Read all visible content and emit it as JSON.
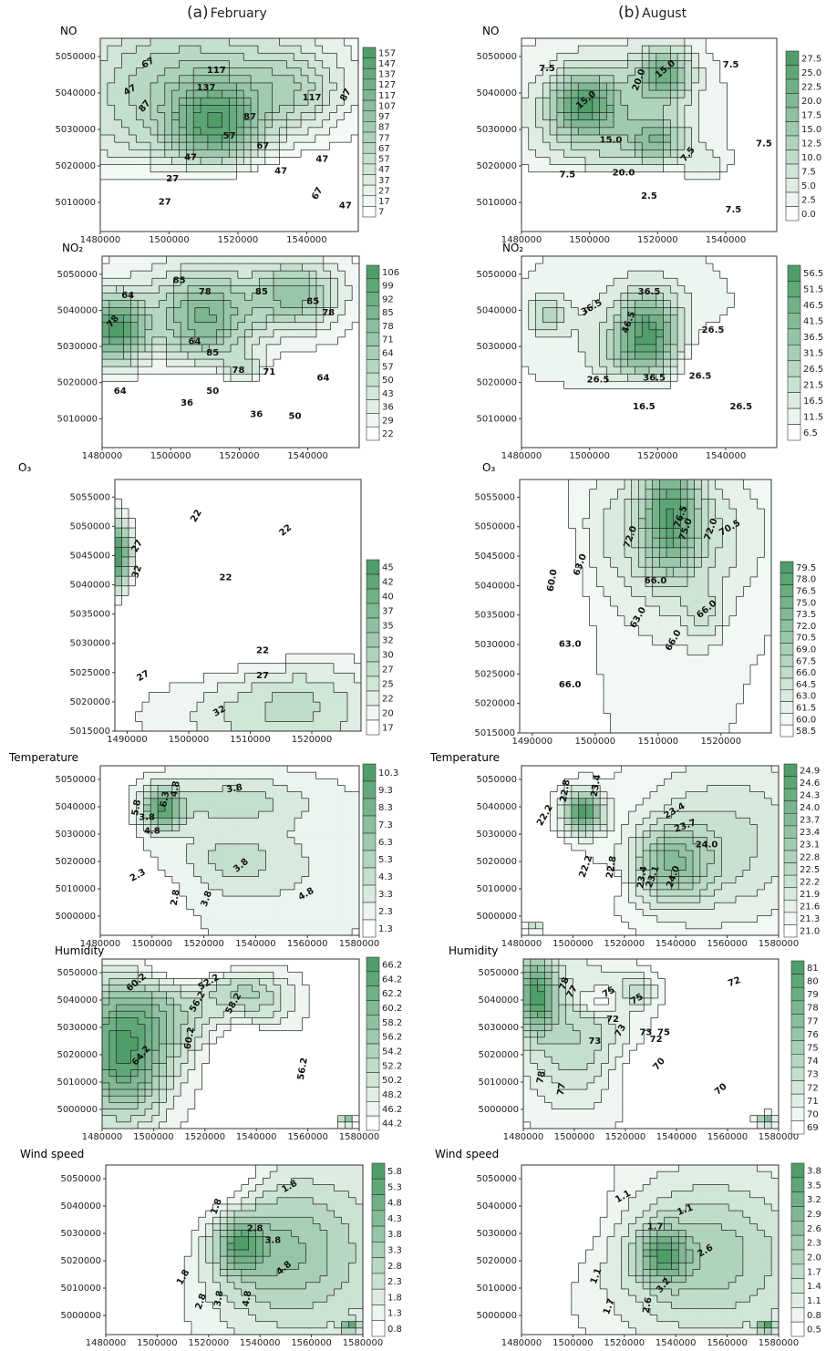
{
  "columns": [
    {
      "letter": "(a)",
      "name": "February"
    },
    {
      "letter": "(b)",
      "name": "August"
    }
  ],
  "colors": {
    "low": "#ffffff",
    "high": "#4f9e6a",
    "line": "#1e1e1e"
  },
  "chart_data": [
    {
      "id": "no-feb",
      "type": "contour",
      "column": "February",
      "title": "NO",
      "xlim": [
        1480000,
        1555000
      ],
      "ylim": [
        5002000,
        5055000
      ],
      "xticks": [
        "1480000",
        "1500000",
        "1520000",
        "1540000"
      ],
      "yticks": [
        "5010000",
        "5020000",
        "5030000",
        "5040000",
        "5050000"
      ],
      "colorbar_levels": [
        "157",
        "147",
        "137",
        "127",
        "117",
        "107",
        "97",
        "87",
        "77",
        "67",
        "57",
        "47",
        "37",
        "27",
        "17",
        "7"
      ],
      "contour_labels": [
        "47",
        "67",
        "87",
        "117",
        "137",
        "57",
        "117",
        "87",
        "67",
        "47",
        "47",
        "27",
        "47",
        "27",
        "47",
        "67",
        "87"
      ]
    },
    {
      "id": "no-aug",
      "type": "contour",
      "column": "August",
      "title": "NO",
      "xlim": [
        1480000,
        1555000
      ],
      "ylim": [
        5002000,
        5055000
      ],
      "xticks": [
        "1480000",
        "1500000",
        "1520000",
        "1540000"
      ],
      "yticks": [
        "5010000",
        "5020000",
        "5030000",
        "5040000",
        "5050000"
      ],
      "colorbar_levels": [
        "27.5",
        "25.0",
        "22.5",
        "20.0",
        "17.5",
        "15.0",
        "12.5",
        "10.0",
        "7.5",
        "5.0",
        "2.5",
        "0.0"
      ],
      "contour_labels": [
        "7.5",
        "15.0",
        "20.0",
        "15.0",
        "7.5",
        "20.0",
        "15.0",
        "7.5",
        "7.5",
        "7.5",
        "2.5",
        "7.5"
      ]
    },
    {
      "id": "no2-feb",
      "type": "contour",
      "column": "February",
      "title": "NO₂",
      "xlim": [
        1480000,
        1555000
      ],
      "ylim": [
        5002000,
        5055000
      ],
      "xticks": [
        "1480000",
        "1500000",
        "1520000",
        "1540000"
      ],
      "yticks": [
        "5010000",
        "5020000",
        "5030000",
        "5040000",
        "5050000"
      ],
      "colorbar_levels": [
        "106",
        "99",
        "92",
        "85",
        "78",
        "71",
        "64",
        "57",
        "50",
        "43",
        "36",
        "29",
        "22"
      ],
      "contour_labels": [
        "64",
        "85",
        "78",
        "85",
        "85",
        "78",
        "78",
        "64",
        "85",
        "78",
        "71",
        "64",
        "50",
        "64",
        "36",
        "36",
        "50"
      ]
    },
    {
      "id": "no2-aug",
      "type": "contour",
      "column": "August",
      "title": "NO₂",
      "xlim": [
        1480000,
        1555000
      ],
      "ylim": [
        5002000,
        5055000
      ],
      "xticks": [
        "1480000",
        "1500000",
        "1520000",
        "1540000"
      ],
      "yticks": [
        "5010000",
        "5020000",
        "5030000",
        "5040000",
        "5050000"
      ],
      "colorbar_levels": [
        "56.5",
        "51.5",
        "46.5",
        "41.5",
        "36.5",
        "31.5",
        "26.5",
        "21.5",
        "16.5",
        "11.5",
        "6.5"
      ],
      "contour_labels": [
        "36.5",
        "36.5",
        "46.5",
        "26.5",
        "36.5",
        "26.5",
        "26.5",
        "16.5",
        "26.5"
      ]
    },
    {
      "id": "o3-feb",
      "type": "contour",
      "column": "February",
      "title": "O₃",
      "xlim": [
        1488000,
        1528000
      ],
      "ylim": [
        5015000,
        5058000
      ],
      "xticks": [
        "1490000",
        "1500000",
        "1510000",
        "1520000"
      ],
      "yticks": [
        "5015000",
        "5020000",
        "5025000",
        "5030000",
        "5035000",
        "5040000",
        "5045000",
        "5050000",
        "5055000"
      ],
      "colorbar_levels": [
        "45",
        "42",
        "40",
        "37",
        "35",
        "32",
        "30",
        "27",
        "25",
        "22",
        "20",
        "17"
      ],
      "contour_labels": [
        "22",
        "22",
        "27",
        "32",
        "22",
        "22",
        "27",
        "27",
        "32"
      ]
    },
    {
      "id": "o3-aug",
      "type": "contour",
      "column": "August",
      "title": "O₃",
      "xlim": [
        1488000,
        1528000
      ],
      "ylim": [
        5015000,
        5058000
      ],
      "xticks": [
        "1490000",
        "1500000",
        "1510000",
        "1520000"
      ],
      "yticks": [
        "5015000",
        "5020000",
        "5025000",
        "5030000",
        "5035000",
        "5040000",
        "5045000",
        "5050000",
        "5055000"
      ],
      "colorbar_levels": [
        "79.5",
        "78.0",
        "76.5",
        "75.0",
        "73.5",
        "72.0",
        "70.5",
        "69.0",
        "67.5",
        "66.0",
        "64.5",
        "63.0",
        "61.5",
        "60.0",
        "58.5"
      ],
      "contour_labels": [
        "63.0",
        "72.0",
        "76.5",
        "75.0",
        "72.0",
        "70.5",
        "60.0",
        "66.0",
        "63.0",
        "66.0",
        "63.0",
        "66.0",
        "66.0"
      ]
    },
    {
      "id": "temp-feb",
      "type": "contour",
      "column": "February",
      "title": "Temperature",
      "xlim": [
        1480000,
        1580000
      ],
      "ylim": [
        4993000,
        5055000
      ],
      "xticks": [
        "1480000",
        "1500000",
        "1520000",
        "1540000",
        "1560000",
        "1580000"
      ],
      "yticks": [
        "5000000",
        "5010000",
        "5020000",
        "5030000",
        "5040000",
        "5050000"
      ],
      "colorbar_levels": [
        "10.3",
        "9.3",
        "8.3",
        "7.3",
        "6.3",
        "5.3",
        "4.3",
        "3.3",
        "2.3",
        "1.3"
      ],
      "contour_labels": [
        "4.8",
        "3.8",
        "5.8",
        "6.3",
        "3.8",
        "4.8",
        "3.8",
        "2.3",
        "2.8",
        "3.8",
        "4.8"
      ]
    },
    {
      "id": "temp-aug",
      "type": "contour",
      "column": "August",
      "title": "Temperature",
      "xlim": [
        1480000,
        1580000
      ],
      "ylim": [
        4993000,
        5055000
      ],
      "xticks": [
        "1480000",
        "1500000",
        "1520000",
        "1540000",
        "1560000",
        "1580000"
      ],
      "yticks": [
        "5000000",
        "5010000",
        "5020000",
        "5030000",
        "5040000",
        "5050000"
      ],
      "colorbar_levels": [
        "24.9",
        "24.6",
        "24.3",
        "24.0",
        "23.7",
        "23.4",
        "23.1",
        "22.8",
        "22.5",
        "22.2",
        "21.9",
        "21.6",
        "21.3",
        "21.0"
      ],
      "contour_labels": [
        "22.8",
        "23.4",
        "22.2",
        "23.4",
        "23.7",
        "24.0",
        "22.2",
        "22.8",
        "23.4",
        "23.1",
        "24.0"
      ]
    },
    {
      "id": "hum-feb",
      "type": "contour",
      "column": "February",
      "title": "Humidity",
      "xlim": [
        1480000,
        1580000
      ],
      "ylim": [
        4993000,
        5055000
      ],
      "xticks": [
        "1480000",
        "1500000",
        "1520000",
        "1540000",
        "1560000",
        "1580000"
      ],
      "yticks": [
        "5000000",
        "5010000",
        "5020000",
        "5030000",
        "5040000",
        "5050000"
      ],
      "colorbar_levels": [
        "66.2",
        "64.2",
        "62.2",
        "60.2",
        "58.2",
        "56.2",
        "54.2",
        "52.2",
        "50.2",
        "48.2",
        "46.2",
        "44.2"
      ],
      "contour_labels": [
        "60.2",
        "52.2",
        "56.2",
        "58.2",
        "64.2",
        "60.2",
        "56.2"
      ]
    },
    {
      "id": "hum-aug",
      "type": "contour",
      "column": "August",
      "title": "Humidity",
      "xlim": [
        1480000,
        1580000
      ],
      "ylim": [
        4993000,
        5055000
      ],
      "xticks": [
        "1480000",
        "1500000",
        "1520000",
        "1540000",
        "1560000",
        "1580000"
      ],
      "yticks": [
        "5000000",
        "5010000",
        "5020000",
        "5030000",
        "5040000",
        "5050000"
      ],
      "colorbar_levels": [
        "81",
        "80",
        "79",
        "78",
        "77",
        "76",
        "75",
        "74",
        "73",
        "72",
        "71",
        "70",
        "69"
      ],
      "contour_labels": [
        "78",
        "77",
        "75",
        "75",
        "72",
        "73",
        "73",
        "75",
        "73",
        "72",
        "72",
        "78",
        "77",
        "70",
        "70"
      ]
    },
    {
      "id": "wind-feb",
      "type": "contour",
      "column": "February",
      "title": "Wind speed",
      "xlim": [
        1480000,
        1580000
      ],
      "ylim": [
        4993000,
        5055000
      ],
      "xticks": [
        "1480000",
        "1500000",
        "1520000",
        "1540000",
        "1560000",
        "1580000"
      ],
      "yticks": [
        "5000000",
        "5010000",
        "5020000",
        "5030000",
        "5040000",
        "5050000"
      ],
      "colorbar_levels": [
        "5.8",
        "5.3",
        "4.8",
        "4.3",
        "3.8",
        "3.3",
        "2.8",
        "2.3",
        "1.8",
        "1.3",
        "0.8"
      ],
      "contour_labels": [
        "1.8",
        "1.8",
        "2.8",
        "3.8",
        "1.8",
        "2.8",
        "3.8",
        "4.8",
        "4.8"
      ]
    },
    {
      "id": "wind-aug",
      "type": "contour",
      "column": "August",
      "title": "Wind speed",
      "xlim": [
        1480000,
        1580000
      ],
      "ylim": [
        4993000,
        5055000
      ],
      "xticks": [
        "1480000",
        "1500000",
        "1520000",
        "1540000",
        "1560000",
        "1580000"
      ],
      "yticks": [
        "5000000",
        "5010000",
        "5020000",
        "5030000",
        "5040000",
        "5050000"
      ],
      "colorbar_levels": [
        "3.8",
        "3.5",
        "3.2",
        "2.9",
        "2.6",
        "2.3",
        "2.0",
        "1.7",
        "1.4",
        "1.1",
        "0.8",
        "0.5"
      ],
      "contour_labels": [
        "1.1",
        "1.1",
        "1.7",
        "2.6",
        "1.1",
        "1.7",
        "2.6",
        "3.2"
      ]
    }
  ]
}
